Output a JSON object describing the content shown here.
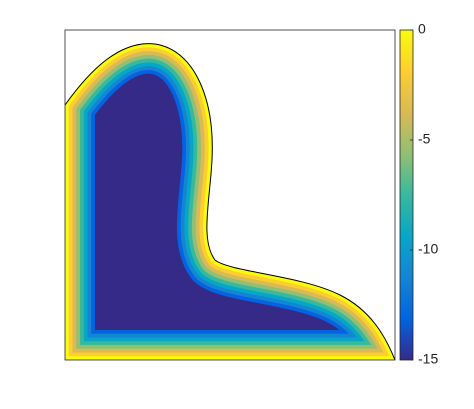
{
  "chart_data": {
    "type": "field",
    "colorbar": {
      "clim": [
        -15,
        0
      ],
      "ticks": [
        0,
        -5,
        -10,
        -15
      ]
    },
    "colormap": [
      "#352a87",
      "#0363e1",
      "#1485d4",
      "#06a7c6",
      "#38b99e",
      "#92bf73",
      "#d9ba56",
      "#fcce2e",
      "#f9fb0e"
    ]
  }
}
